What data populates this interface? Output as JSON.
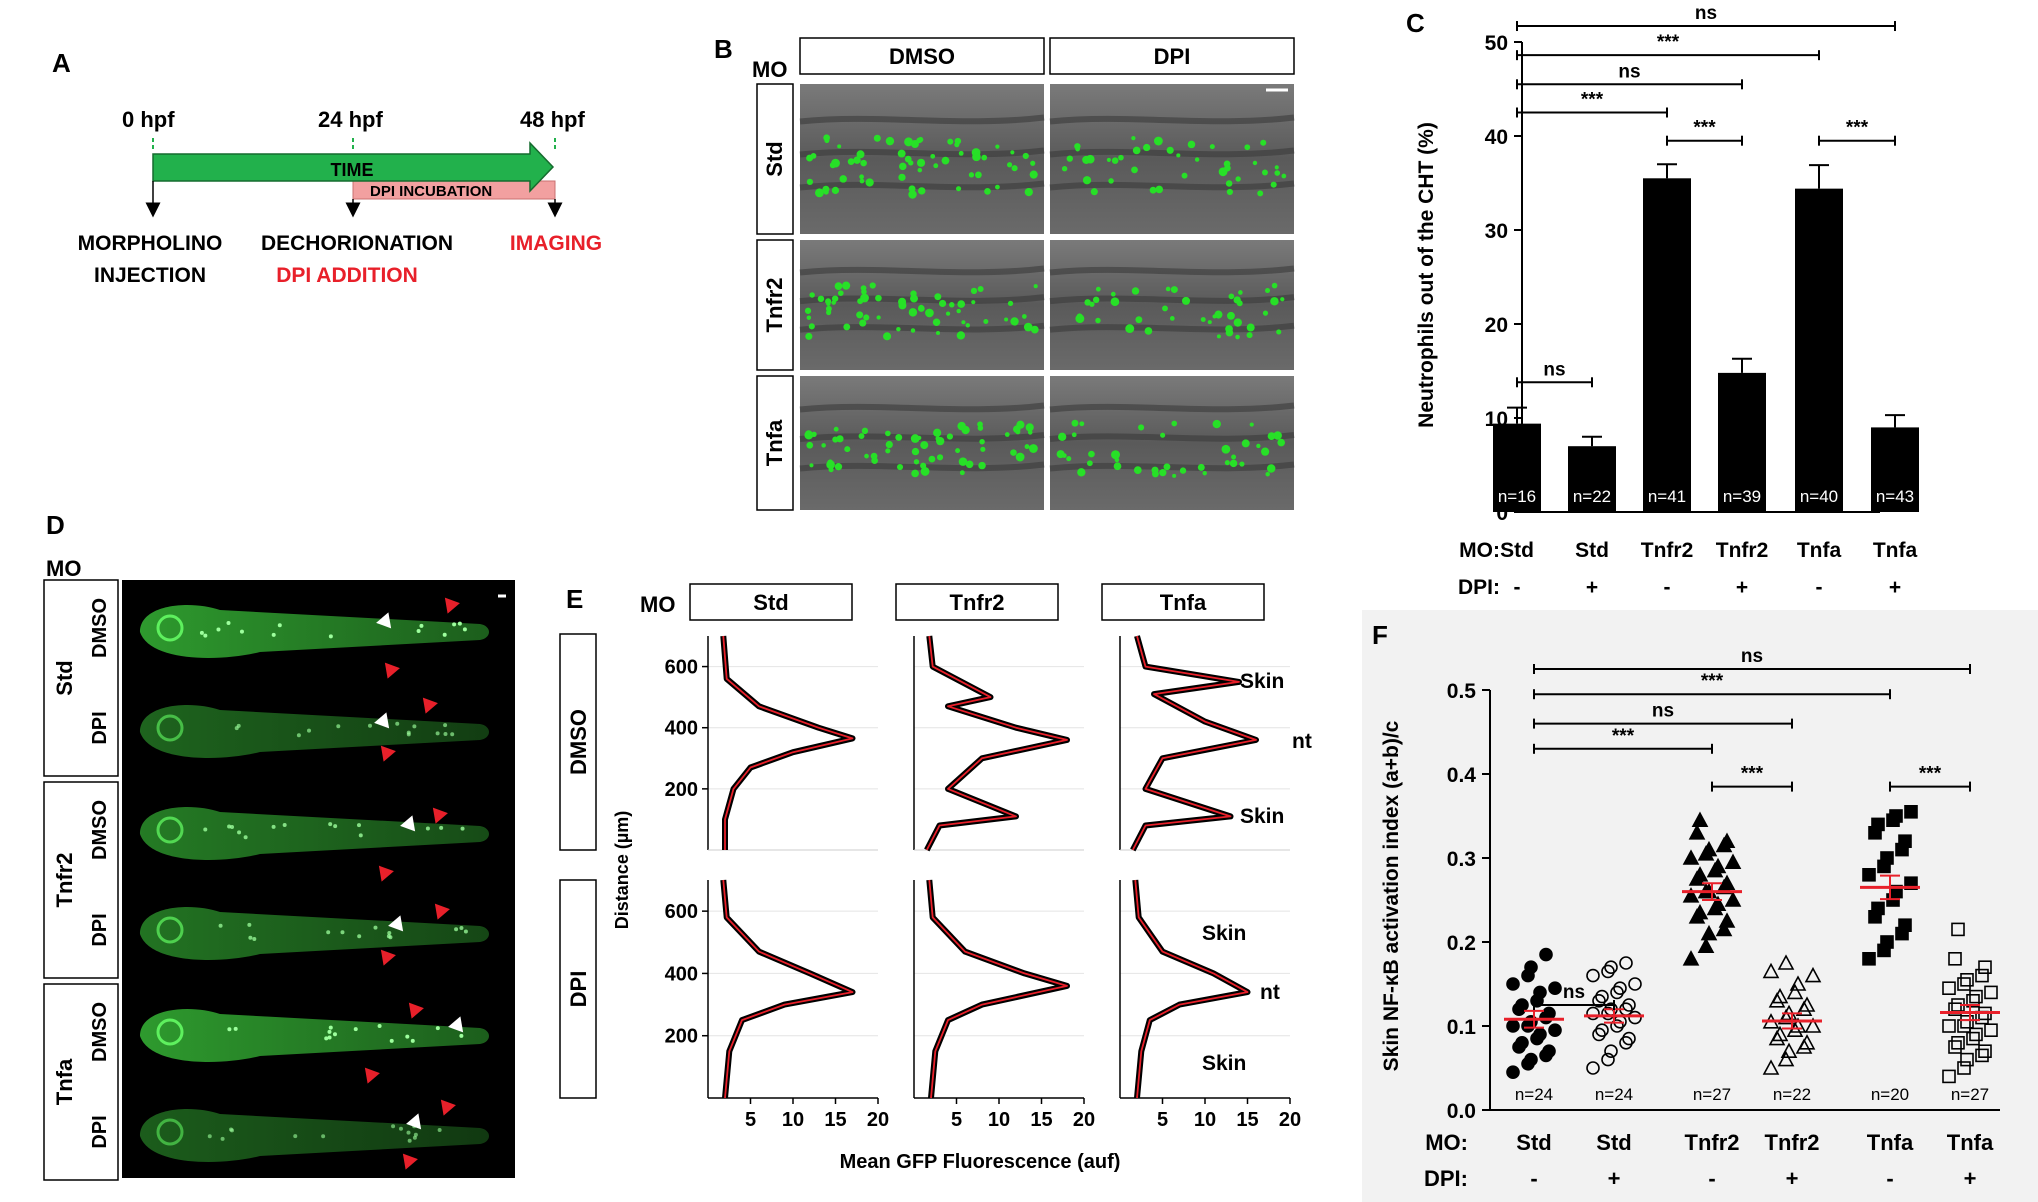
{
  "panel_labels": {
    "a": "A",
    "b": "B",
    "c": "C",
    "d": "D",
    "e": "E",
    "f": "F"
  },
  "timeline": {
    "ticks": [
      "0 hpf",
      "24 hpf",
      "48 hpf"
    ],
    "arrow_label": "TIME",
    "incubation_label": "DPI  INCUBATION",
    "events": [
      {
        "lines": [
          "MORPHOLINO",
          "INJECTION"
        ],
        "color": "#000000"
      },
      {
        "lines": [
          "DECHORIONATION"
        ],
        "color": "#000000"
      },
      {
        "lines": [
          "DPI ADDITION"
        ],
        "color": "#e8202a"
      },
      {
        "lines": [
          "IMAGING"
        ],
        "color": "#e8202a"
      }
    ],
    "colors": {
      "arrow": "#22b14c",
      "incubation": "#f2a0a0",
      "tick": "#22b14c"
    }
  },
  "panel_b": {
    "mo_label": "MO",
    "columns": [
      "DMSO",
      "DPI"
    ],
    "rows": [
      "Std",
      "Tnfr2",
      "Tnfa"
    ]
  },
  "panel_d": {
    "mo_label": "MO",
    "groups": [
      "Std",
      "Tnfr2",
      "Tnfa"
    ],
    "treatments": [
      "DMSO",
      "DPI",
      "DMSO",
      "DPI",
      "DMSO",
      "DPI"
    ]
  },
  "panel_e": {
    "mo_label": "MO",
    "columns": [
      "Std",
      "Tnfr2",
      "Tnfa"
    ],
    "rows": [
      "DMSO",
      "DPI"
    ],
    "annotations_dmso": [
      "Skin",
      "nt",
      "Skin"
    ],
    "annotations_dpi": [
      "Skin",
      "nt",
      "Skin"
    ],
    "yticks": [
      "600",
      "400",
      "200"
    ],
    "xticks": [
      "5",
      "10",
      "15",
      "20"
    ],
    "ylabel": "Distance (µm)",
    "xlabel": "Mean GFP Fluorescence (auf)"
  },
  "chart_data": [
    {
      "panel": "C",
      "type": "bar",
      "ylabel": "Neutrophils out of the CHT (%)",
      "ylim": [
        0,
        50
      ],
      "yticks": [
        "0",
        "10",
        "20",
        "30",
        "40",
        "50"
      ],
      "categories": [
        "Std",
        "Std",
        "Tnfr2",
        "Tnfr2",
        "Tnfa",
        "Tnfa"
      ],
      "dpi": [
        "-",
        "+",
        "-",
        "+",
        "-",
        "+"
      ],
      "values": [
        9.4,
        7.0,
        35.5,
        14.8,
        34.4,
        9.0
      ],
      "errors": [
        1.7,
        1.0,
        1.5,
        1.5,
        2.5,
        1.3
      ],
      "n_labels": [
        "n=16",
        "n=22",
        "n=41",
        "n=39",
        "n=40",
        "n=43"
      ],
      "row_labels": [
        "MO:",
        "DPI:"
      ],
      "significance": [
        "ns",
        "***",
        "ns",
        "***",
        "***",
        "ns",
        "***"
      ],
      "bar_color": "#000000"
    },
    {
      "panel": "F",
      "type": "scatter",
      "ylabel": "Skin NF-κB activation index (a+b)/c",
      "ylim": [
        0,
        0.5
      ],
      "yticks": [
        "0.0",
        "0.1",
        "0.2",
        "0.3",
        "0.4",
        "0.5"
      ],
      "categories": [
        "Std",
        "Std",
        "Tnfr2",
        "Tnfr2",
        "Tnfa",
        "Tnfa"
      ],
      "dpi": [
        "-",
        "+",
        "-",
        "+",
        "-",
        "+"
      ],
      "means": [
        0.108,
        0.112,
        0.26,
        0.106,
        0.265,
        0.116
      ],
      "sem": [
        0.01,
        0.008,
        0.01,
        0.009,
        0.014,
        0.009
      ],
      "n_labels": [
        "n=24",
        "n=24",
        "n=27",
        "n=22",
        "n=20",
        "n=27"
      ],
      "row_labels": [
        "MO:",
        "DPI:"
      ],
      "significance": [
        "ns",
        "***",
        "ns",
        "***",
        "***",
        "ns",
        "***"
      ],
      "mean_color": "#e8202a",
      "points": [
        [
          0.045,
          0.055,
          0.06,
          0.065,
          0.07,
          0.075,
          0.08,
          0.085,
          0.09,
          0.095,
          0.1,
          0.1,
          0.105,
          0.11,
          0.115,
          0.12,
          0.125,
          0.13,
          0.14,
          0.145,
          0.15,
          0.16,
          0.17,
          0.185
        ],
        [
          0.05,
          0.06,
          0.07,
          0.08,
          0.085,
          0.09,
          0.095,
          0.1,
          0.105,
          0.11,
          0.115,
          0.115,
          0.12,
          0.12,
          0.125,
          0.13,
          0.135,
          0.14,
          0.145,
          0.15,
          0.16,
          0.165,
          0.17,
          0.175
        ],
        [
          0.18,
          0.195,
          0.21,
          0.215,
          0.225,
          0.23,
          0.235,
          0.24,
          0.245,
          0.25,
          0.255,
          0.26,
          0.26,
          0.265,
          0.27,
          0.275,
          0.28,
          0.285,
          0.29,
          0.295,
          0.3,
          0.305,
          0.31,
          0.315,
          0.32,
          0.33,
          0.345
        ],
        [
          0.05,
          0.06,
          0.07,
          0.075,
          0.08,
          0.085,
          0.09,
          0.095,
          0.1,
          0.1,
          0.105,
          0.11,
          0.115,
          0.12,
          0.125,
          0.13,
          0.135,
          0.14,
          0.15,
          0.16,
          0.165,
          0.175
        ],
        [
          0.18,
          0.19,
          0.2,
          0.21,
          0.22,
          0.23,
          0.24,
          0.25,
          0.26,
          0.27,
          0.28,
          0.29,
          0.3,
          0.31,
          0.32,
          0.33,
          0.34,
          0.345,
          0.35,
          0.355
        ],
        [
          0.04,
          0.05,
          0.06,
          0.065,
          0.07,
          0.075,
          0.08,
          0.085,
          0.09,
          0.095,
          0.1,
          0.1,
          0.105,
          0.11,
          0.115,
          0.12,
          0.125,
          0.13,
          0.135,
          0.14,
          0.145,
          0.15,
          0.155,
          0.16,
          0.17,
          0.18,
          0.215
        ]
      ],
      "point_styles": [
        "filled-circle",
        "open-circle",
        "filled-triangle",
        "open-triangle",
        "filled-square",
        "open-square"
      ]
    }
  ]
}
